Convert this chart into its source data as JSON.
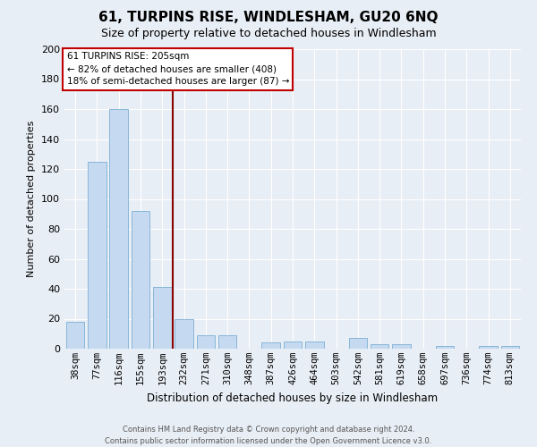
{
  "title": "61, TURPINS RISE, WINDLESHAM, GU20 6NQ",
  "subtitle": "Size of property relative to detached houses in Windlesham",
  "xlabel": "Distribution of detached houses by size in Windlesham",
  "ylabel": "Number of detached properties",
  "bar_labels": [
    "38sqm",
    "77sqm",
    "116sqm",
    "155sqm",
    "193sqm",
    "232sqm",
    "271sqm",
    "310sqm",
    "348sqm",
    "387sqm",
    "426sqm",
    "464sqm",
    "503sqm",
    "542sqm",
    "581sqm",
    "619sqm",
    "658sqm",
    "697sqm",
    "736sqm",
    "774sqm",
    "813sqm"
  ],
  "bar_values": [
    18,
    125,
    160,
    92,
    41,
    20,
    9,
    9,
    0,
    4,
    5,
    5,
    0,
    7,
    3,
    3,
    0,
    2,
    0,
    2,
    2
  ],
  "bar_color": "#c5d9f1",
  "bar_edgecolor": "#7bafd4",
  "vline_x": 4.5,
  "vline_color": "#8b0000",
  "ylim": [
    0,
    200
  ],
  "yticks": [
    0,
    20,
    40,
    60,
    80,
    100,
    120,
    140,
    160,
    180,
    200
  ],
  "annotation_title": "61 TURPINS RISE: 205sqm",
  "annotation_line1": "← 82% of detached houses are smaller (408)",
  "annotation_line2": "18% of semi-detached houses are larger (87) →",
  "annotation_box_facecolor": "#ffffff",
  "annotation_box_edgecolor": "#c00000",
  "footer_line1": "Contains HM Land Registry data © Crown copyright and database right 2024.",
  "footer_line2": "Contains public sector information licensed under the Open Government Licence v3.0.",
  "bg_color": "#e8eef5",
  "plot_bg_color": "#e8eef5",
  "grid_color": "#ffffff",
  "title_fontsize": 11,
  "subtitle_fontsize": 9,
  "ylabel_fontsize": 8,
  "xlabel_fontsize": 8.5,
  "tick_fontsize": 7.5,
  "ytick_fontsize": 8,
  "footer_fontsize": 6,
  "annotation_fontsize": 7.5
}
